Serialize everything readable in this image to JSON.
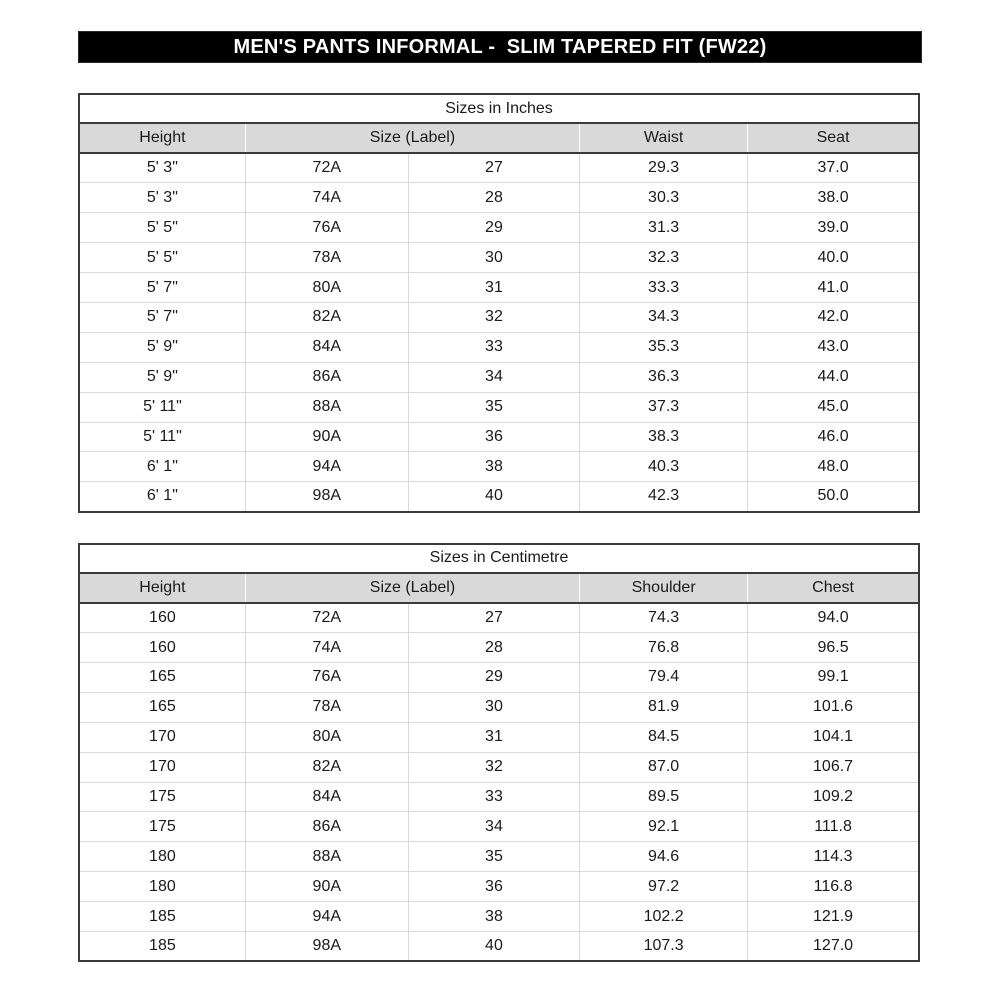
{
  "banner": {
    "title": "MEN'S PANTS INFORMAL -  SLIM TAPERED FIT (FW22)"
  },
  "colors": {
    "banner_bg": "#000000",
    "banner_text": "#ffffff",
    "header_row_bg": "#d9d9d9",
    "border_dark": "#3a3a3a",
    "border_light": "#d9d9d9",
    "text": "#1a1a1a"
  },
  "tables": [
    {
      "title": "Sizes in Inches",
      "columns": [
        "Height",
        "Size (Label)",
        "Waist",
        "Seat"
      ],
      "rows": [
        [
          "5' 3\"",
          "72A",
          "27",
          "29.3",
          "37.0"
        ],
        [
          "5' 3\"",
          "74A",
          "28",
          "30.3",
          "38.0"
        ],
        [
          "5' 5\"",
          "76A",
          "29",
          "31.3",
          "39.0"
        ],
        [
          "5' 5\"",
          "78A",
          "30",
          "32.3",
          "40.0"
        ],
        [
          "5' 7\"",
          "80A",
          "31",
          "33.3",
          "41.0"
        ],
        [
          "5' 7\"",
          "82A",
          "32",
          "34.3",
          "42.0"
        ],
        [
          "5' 9\"",
          "84A",
          "33",
          "35.3",
          "43.0"
        ],
        [
          "5' 9\"",
          "86A",
          "34",
          "36.3",
          "44.0"
        ],
        [
          "5' 11\"",
          "88A",
          "35",
          "37.3",
          "45.0"
        ],
        [
          "5' 11\"",
          "90A",
          "36",
          "38.3",
          "46.0"
        ],
        [
          "6' 1\"",
          "94A",
          "38",
          "40.3",
          "48.0"
        ],
        [
          "6' 1\"",
          "98A",
          "40",
          "42.3",
          "50.0"
        ]
      ]
    },
    {
      "title": "Sizes in Centimetre",
      "columns": [
        "Height",
        "Size (Label)",
        "Shoulder",
        "Chest"
      ],
      "rows": [
        [
          "160",
          "72A",
          "27",
          "74.3",
          "94.0"
        ],
        [
          "160",
          "74A",
          "28",
          "76.8",
          "96.5"
        ],
        [
          "165",
          "76A",
          "29",
          "79.4",
          "99.1"
        ],
        [
          "165",
          "78A",
          "30",
          "81.9",
          "101.6"
        ],
        [
          "170",
          "80A",
          "31",
          "84.5",
          "104.1"
        ],
        [
          "170",
          "82A",
          "32",
          "87.0",
          "106.7"
        ],
        [
          "175",
          "84A",
          "33",
          "89.5",
          "109.2"
        ],
        [
          "175",
          "86A",
          "34",
          "92.1",
          "111.8"
        ],
        [
          "180",
          "88A",
          "35",
          "94.6",
          "114.3"
        ],
        [
          "180",
          "90A",
          "36",
          "97.2",
          "116.8"
        ],
        [
          "185",
          "94A",
          "38",
          "102.2",
          "121.9"
        ],
        [
          "185",
          "98A",
          "40",
          "107.3",
          "127.0"
        ]
      ]
    }
  ]
}
